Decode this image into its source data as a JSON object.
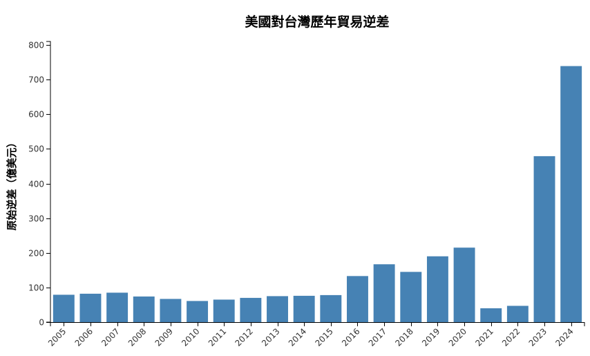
{
  "chart_data": {
    "type": "bar",
    "title": "美國對台灣歷年貿易逆差",
    "xlabel": "",
    "ylabel": "原始逆差（億美元）",
    "categories": [
      "2005",
      "2006",
      "2007",
      "2008",
      "2009",
      "2010",
      "2011",
      "2012",
      "2013",
      "2014",
      "2015",
      "2016",
      "2017",
      "2018",
      "2019",
      "2020",
      "2021",
      "2022",
      "2023",
      "2024"
    ],
    "values": [
      79,
      82,
      85,
      74,
      67,
      61,
      65,
      70,
      75,
      76,
      78,
      133,
      167,
      145,
      190,
      215,
      40,
      47,
      479,
      739
    ],
    "ylim": [
      0,
      810
    ],
    "yticks": [
      0,
      100,
      200,
      300,
      400,
      500,
      600,
      700,
      800
    ],
    "grid": false,
    "color": "#4682b4"
  }
}
